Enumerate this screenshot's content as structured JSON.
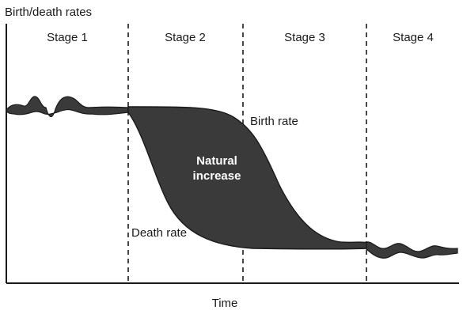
{
  "chart_data": {
    "type": "area",
    "ylabel": "Birth/death rates",
    "xlabel": "Time",
    "stages": [
      "Stage 1",
      "Stage 2",
      "Stage 3",
      "Stage 4"
    ],
    "region_label": [
      "Natural",
      "increase"
    ],
    "series": [
      {
        "name": "Birth rate"
      },
      {
        "name": "Death rate"
      }
    ],
    "colors": {
      "fill": "#3a3a3a",
      "line": "#1a1a1a",
      "label_on_fill": "#ffffff"
    },
    "grid": false
  }
}
